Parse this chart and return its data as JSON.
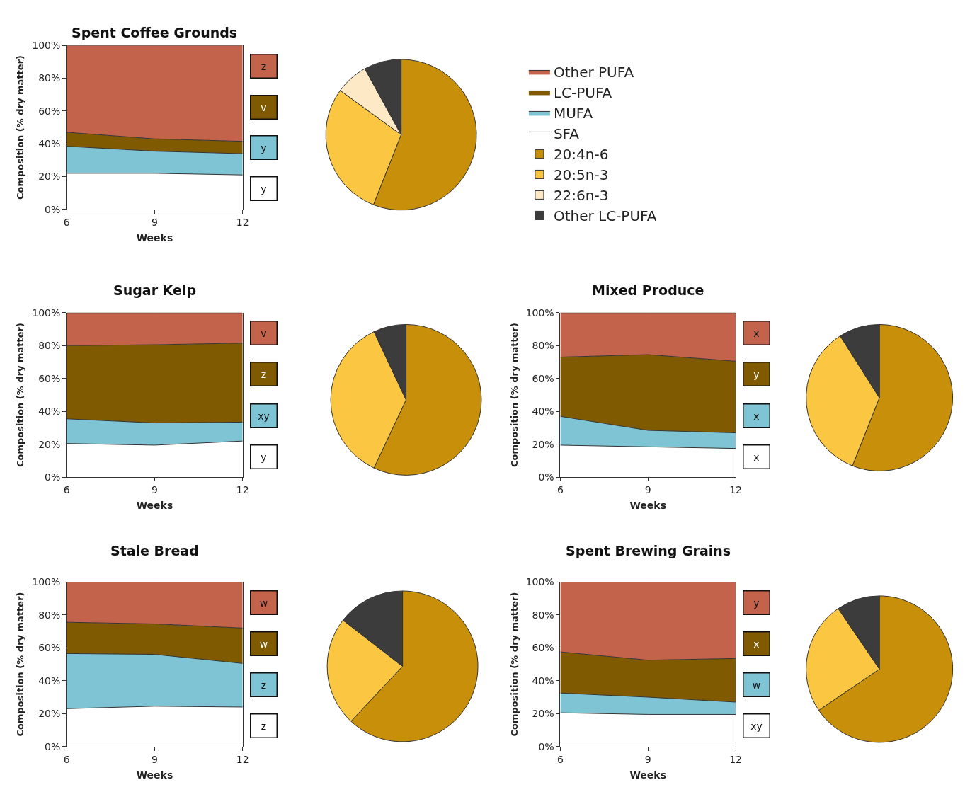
{
  "chart_data": [
    {
      "type": "area",
      "title": "Spent Coffee Grounds",
      "xlabel": "Weeks",
      "ylabel": "Composition (% dry matter)",
      "stacked": true,
      "x": [
        6,
        9,
        12
      ],
      "xlim": [
        6,
        12
      ],
      "xticks": [
        6,
        9,
        12
      ],
      "ylim": [
        0,
        100
      ],
      "yticks": [
        {
          "value": 0,
          "label": "0%"
        },
        {
          "value": 20,
          "label": "20%"
        },
        {
          "value": 40,
          "label": "40%"
        },
        {
          "value": 60,
          "label": "60%"
        },
        {
          "value": 80,
          "label": "80%"
        },
        {
          "value": 100,
          "label": "100%"
        }
      ],
      "legend": "right",
      "series": [
        {
          "name": "SFA",
          "color": "#ffffff",
          "values": [
            22,
            22,
            21
          ]
        },
        {
          "name": "MUFA",
          "color": "#7fc4d4",
          "values": [
            16.5,
            13.5,
            13
          ]
        },
        {
          "name": "LC-PUFA",
          "color": "#7f5a00",
          "values": [
            8.5,
            7.5,
            7.5
          ]
        },
        {
          "name": "Other PUFA",
          "color": "#c3634b",
          "values": [
            53,
            57,
            58.5
          ]
        }
      ],
      "annotations": [
        "z",
        "v",
        "y",
        "y"
      ]
    },
    {
      "type": "pie",
      "categories": [
        "20:4n-6",
        "20:5n-3",
        "22:6n-3",
        "Other LC-PUFA"
      ],
      "values": [
        56,
        29,
        7,
        8
      ],
      "colors": [
        "#c8900a",
        "#fbc743",
        "#fde9c6",
        "#3c3c3c"
      ],
      "legend": "right"
    },
    {
      "type": "area",
      "title": "Sugar Kelp",
      "xlabel": "Weeks",
      "ylabel": "Composition (% dry matter)",
      "stacked": true,
      "x": [
        6,
        9,
        12
      ],
      "xlim": [
        6,
        12
      ],
      "xticks": [
        6,
        9,
        12
      ],
      "ylim": [
        0,
        100
      ],
      "yticks": [
        {
          "value": 0,
          "label": "0%"
        },
        {
          "value": 20,
          "label": "20%"
        },
        {
          "value": 40,
          "label": "40%"
        },
        {
          "value": 60,
          "label": "60%"
        },
        {
          "value": 80,
          "label": "80%"
        },
        {
          "value": 100,
          "label": "100%"
        }
      ],
      "series": [
        {
          "color": "#ffffff",
          "values": [
            20.5,
            19.5,
            22
          ]
        },
        {
          "color": "#7fc4d4",
          "values": [
            15,
            13.5,
            11.5
          ]
        },
        {
          "color": "#7f5a00",
          "values": [
            44.5,
            47.5,
            48
          ]
        },
        {
          "color": "#c3634b",
          "values": [
            20,
            19.5,
            18.5
          ]
        }
      ],
      "annotations": [
        "v",
        "z",
        "xy",
        "y"
      ]
    },
    {
      "type": "pie",
      "categories": [
        null,
        null,
        null
      ],
      "values": [
        57,
        36,
        7
      ],
      "colors": [
        "#c8900a",
        "#fbc743",
        "#3c3c3c"
      ]
    },
    {
      "type": "area",
      "title": "Mixed Produce",
      "xlabel": "Weeks",
      "ylabel": "Composition (% dry matter)",
      "stacked": true,
      "x": [
        6,
        9,
        12
      ],
      "xlim": [
        6,
        12
      ],
      "xticks": [
        6,
        9,
        12
      ],
      "ylim": [
        0,
        100
      ],
      "yticks": [
        {
          "value": 0,
          "label": "0%"
        },
        {
          "value": 20,
          "label": "20%"
        },
        {
          "value": 40,
          "label": "40%"
        },
        {
          "value": 60,
          "label": "60%"
        },
        {
          "value": 80,
          "label": "80%"
        },
        {
          "value": 100,
          "label": "100%"
        }
      ],
      "series": [
        {
          "color": "#ffffff",
          "values": [
            19.5,
            18.5,
            17.5
          ]
        },
        {
          "color": "#7fc4d4",
          "values": [
            17.5,
            10,
            9.5
          ]
        },
        {
          "color": "#7f5a00",
          "values": [
            36,
            46,
            43.5
          ]
        },
        {
          "color": "#c3634b",
          "values": [
            27,
            25.5,
            29.5
          ]
        }
      ],
      "annotations": [
        "x",
        "y",
        "x",
        "x"
      ]
    },
    {
      "type": "pie",
      "categories": [
        null,
        null,
        null
      ],
      "values": [
        56,
        35,
        9
      ],
      "colors": [
        "#c8900a",
        "#fbc743",
        "#3c3c3c"
      ]
    },
    {
      "type": "area",
      "title": "Stale Bread",
      "xlabel": "Weeks",
      "ylabel": "Composition (% dry matter)",
      "stacked": true,
      "x": [
        6,
        9,
        12
      ],
      "xlim": [
        6,
        12
      ],
      "xticks": [
        6,
        9,
        12
      ],
      "ylim": [
        0,
        100
      ],
      "yticks": [
        {
          "value": 0,
          "label": "0%"
        },
        {
          "value": 20,
          "label": "20%"
        },
        {
          "value": 40,
          "label": "40%"
        },
        {
          "value": 60,
          "label": "60%"
        },
        {
          "value": 80,
          "label": "80%"
        },
        {
          "value": 100,
          "label": "100%"
        }
      ],
      "series": [
        {
          "color": "#ffffff",
          "values": [
            23,
            24.5,
            24
          ]
        },
        {
          "color": "#7fc4d4",
          "values": [
            33.5,
            31.5,
            26.5
          ]
        },
        {
          "color": "#7f5a00",
          "values": [
            19,
            18.5,
            21.5
          ]
        },
        {
          "color": "#c3634b",
          "values": [
            24.5,
            25.5,
            28
          ]
        }
      ],
      "annotations": [
        "w",
        "w",
        "z",
        "z"
      ]
    },
    {
      "type": "pie",
      "categories": [
        null,
        null,
        null
      ],
      "values": [
        62,
        23.5,
        14.5
      ],
      "colors": [
        "#c8900a",
        "#fbc743",
        "#3c3c3c"
      ]
    },
    {
      "type": "area",
      "title": "Spent Brewing Grains",
      "xlabel": "Weeks",
      "ylabel": "Composition (% dry matter)",
      "stacked": true,
      "x": [
        6,
        9,
        12
      ],
      "xlim": [
        6,
        12
      ],
      "xticks": [
        6,
        9,
        12
      ],
      "ylim": [
        0,
        100
      ],
      "yticks": [
        {
          "value": 0,
          "label": "0%"
        },
        {
          "value": 20,
          "label": "20%"
        },
        {
          "value": 40,
          "label": "40%"
        },
        {
          "value": 60,
          "label": "60%"
        },
        {
          "value": 80,
          "label": "80%"
        },
        {
          "value": 100,
          "label": "100%"
        }
      ],
      "series": [
        {
          "color": "#ffffff",
          "values": [
            20.5,
            19.5,
            19.5
          ]
        },
        {
          "color": "#7fc4d4",
          "values": [
            12,
            10.5,
            7.5
          ]
        },
        {
          "color": "#7f5a00",
          "values": [
            25,
            22.5,
            26.5
          ]
        },
        {
          "color": "#c3634b",
          "values": [
            42.5,
            47.5,
            46.5
          ]
        }
      ],
      "annotations": [
        "y",
        "x",
        "w",
        "xy"
      ]
    },
    {
      "type": "pie",
      "categories": [
        null,
        null,
        null
      ],
      "values": [
        65.5,
        25,
        9.5
      ],
      "colors": [
        "#c8900a",
        "#fbc743",
        "#3c3c3c"
      ]
    }
  ]
}
